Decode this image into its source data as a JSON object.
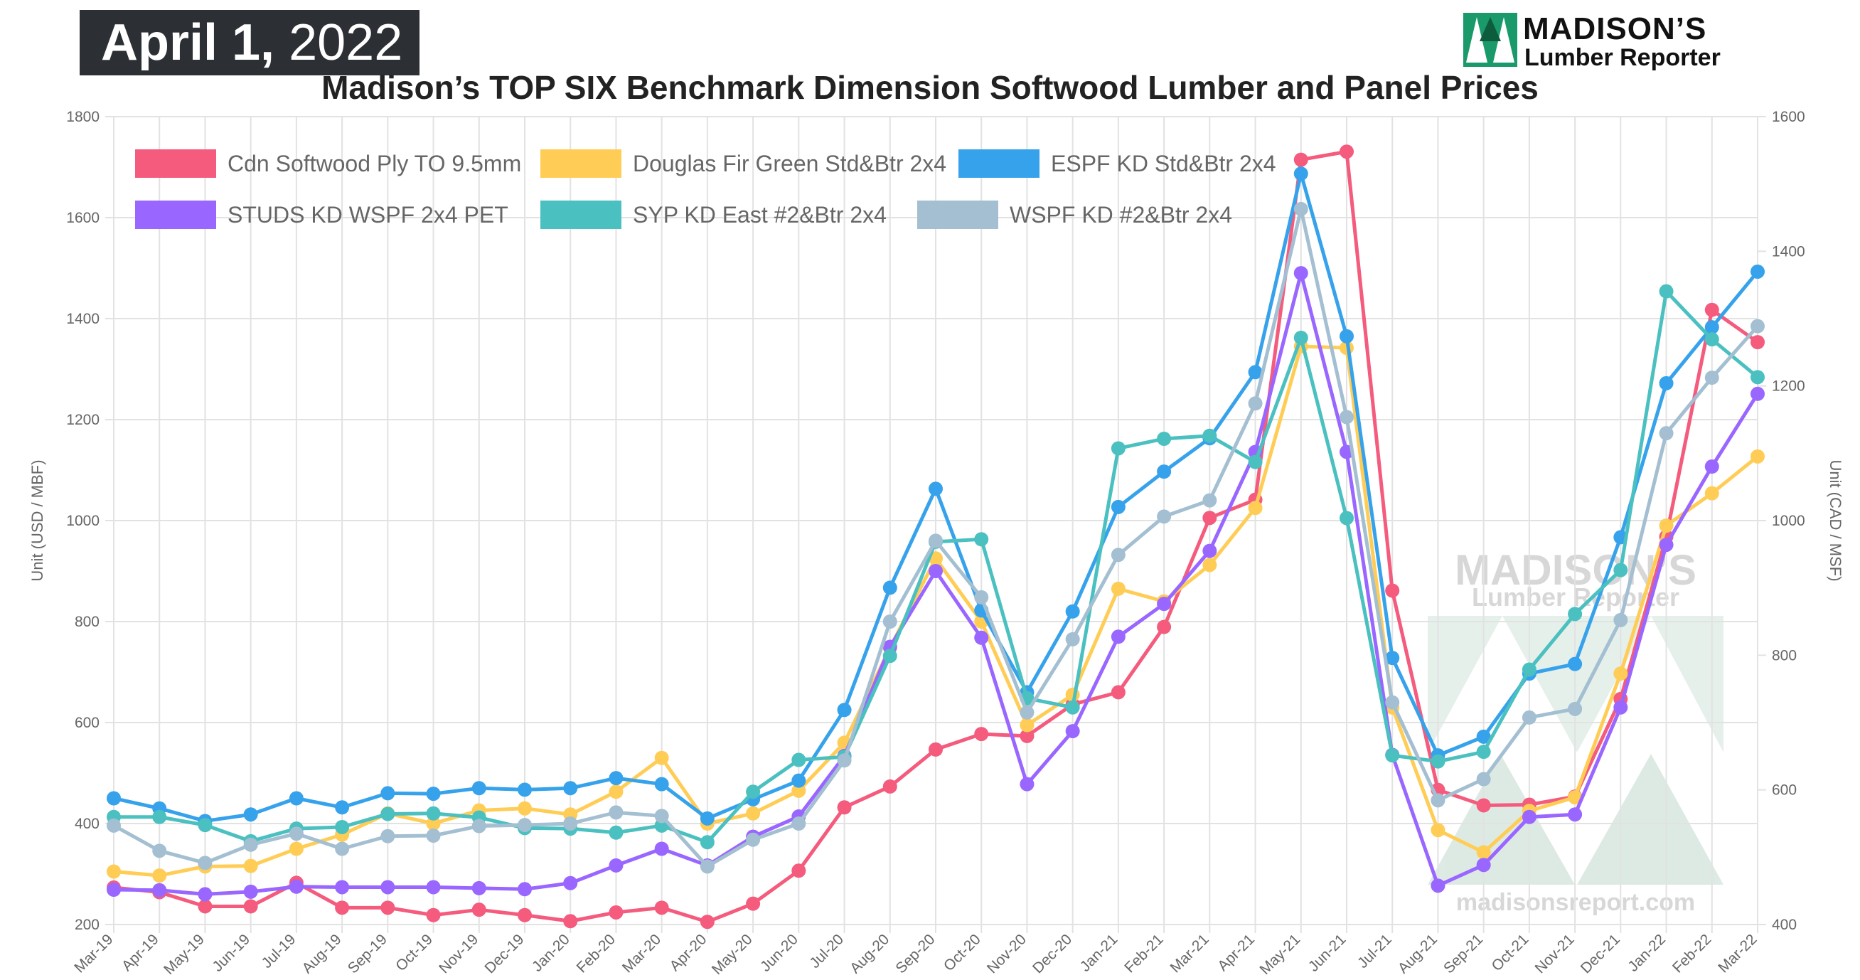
{
  "header": {
    "date_bold": "April 1,",
    "date_year": " 2022",
    "brand_name": "MADISON’S",
    "brand_sub": "Lumber Reporter"
  },
  "watermark": {
    "line1": "MADISON’S",
    "line2": "Lumber Reporter",
    "url": "madisonsreport.com"
  },
  "chart_data": {
    "type": "line",
    "title": "Madison’s TOP SIX Benchmark Dimension Softwood Lumber and Panel Prices",
    "ylabel_left": "Unit (USD / MBF)",
    "ylabel_right": "Unit (CAD / MSF)",
    "ylim_left": [
      200,
      1800
    ],
    "ylim_right": [
      400,
      1600
    ],
    "yticks_left": [
      "200",
      "400",
      "600",
      "800",
      "1000",
      "1200",
      "1400",
      "1600",
      "1800"
    ],
    "yticks_right": [
      "400",
      "600",
      "800",
      "1000",
      "1200",
      "1400",
      "1600"
    ],
    "grid": true,
    "legend_position": "top-left",
    "categories": [
      "Mar-19",
      "Apr-19",
      "May-19",
      "Jun-19",
      "Jul-19",
      "Aug-19",
      "Sep-19",
      "Oct-19",
      "Nov-19",
      "Dec-19",
      "Jan-20",
      "Feb-20",
      "Mar-20",
      "Apr-20",
      "May-20",
      "Jun-20",
      "Jul-20",
      "Aug-20",
      "Sep-20",
      "Oct-20",
      "Nov-20",
      "Dec-20",
      "Jan-21",
      "Feb-21",
      "Mar-21",
      "Apr-21",
      "May-21",
      "Jun-21",
      "Jul-21",
      "Aug-21",
      "Sep-21",
      "Oct-21",
      "Nov-21",
      "Dec-21",
      "Jan-22",
      "Feb-22",
      "Mar-22"
    ],
    "series": [
      {
        "name": "Cdn Softwood Ply TO 9.5mm",
        "color": "#f45b7d",
        "axis": "right",
        "values": [
          455,
          448,
          427,
          427,
          462,
          425,
          425,
          414,
          422,
          414,
          405,
          418,
          425,
          404,
          431,
          480,
          574,
          605,
          660,
          683,
          680,
          727,
          745,
          842,
          1004,
          1031,
          1536,
          1548,
          896,
          600,
          577,
          578,
          590,
          735,
          976,
          1313,
          1265
        ]
      },
      {
        "name": "Douglas Fir Green Std&Btr 2x4",
        "color": "#ffcd56",
        "values": [
          305,
          297,
          315,
          316,
          350,
          378,
          420,
          400,
          426,
          430,
          418,
          463,
          530,
          400,
          420,
          465,
          560,
          748,
          925,
          800,
          595,
          655,
          865,
          840,
          912,
          1025,
          1345,
          1342,
          630,
          387,
          343,
          425,
          452,
          697,
          990,
          1054,
          1127
        ]
      },
      {
        "name": "ESPF KD Std&Btr 2x4",
        "color": "#36a2eb",
        "values": [
          450,
          430,
          405,
          418,
          450,
          432,
          460,
          459,
          470,
          467,
          470,
          490,
          478,
          410,
          448,
          485,
          625,
          867,
          1063,
          822,
          660,
          820,
          1027,
          1097,
          1163,
          1294,
          1687,
          1365,
          728,
          535,
          572,
          697,
          716,
          967,
          1272,
          1383,
          1493
        ]
      },
      {
        "name": "STUDS KD WSPF 2x4 PET",
        "color": "#9966ff",
        "values": [
          269,
          268,
          260,
          265,
          275,
          274,
          274,
          274,
          272,
          270,
          282,
          317,
          350,
          317,
          374,
          414,
          534,
          750,
          900,
          768,
          478,
          583,
          770,
          835,
          940,
          1136,
          1490,
          1136,
          536,
          277,
          318,
          413,
          418,
          630,
          952,
          1107,
          1251
        ]
      },
      {
        "name": "SYP KD East #2&Btr 2x4",
        "color": "#4bc0c0",
        "values": [
          413,
          413,
          397,
          365,
          390,
          393,
          419,
          420,
          412,
          391,
          390,
          382,
          396,
          363,
          463,
          526,
          532,
          732,
          958,
          963,
          648,
          630,
          1143,
          1162,
          1168,
          1116,
          1362,
          1005,
          535,
          523,
          542,
          705,
          815,
          902,
          1454,
          1359,
          1284
        ]
      },
      {
        "name": "WSPF KD #2&Btr 2x4",
        "color": "#a3bfd1",
        "values": [
          396,
          346,
          322,
          358,
          380,
          350,
          375,
          376,
          395,
          397,
          400,
          422,
          415,
          315,
          368,
          400,
          525,
          800,
          960,
          848,
          620,
          765,
          932,
          1008,
          1040,
          1232,
          1617,
          1205,
          640,
          446,
          488,
          610,
          627,
          803,
          1173,
          1283,
          1385
        ]
      }
    ]
  }
}
